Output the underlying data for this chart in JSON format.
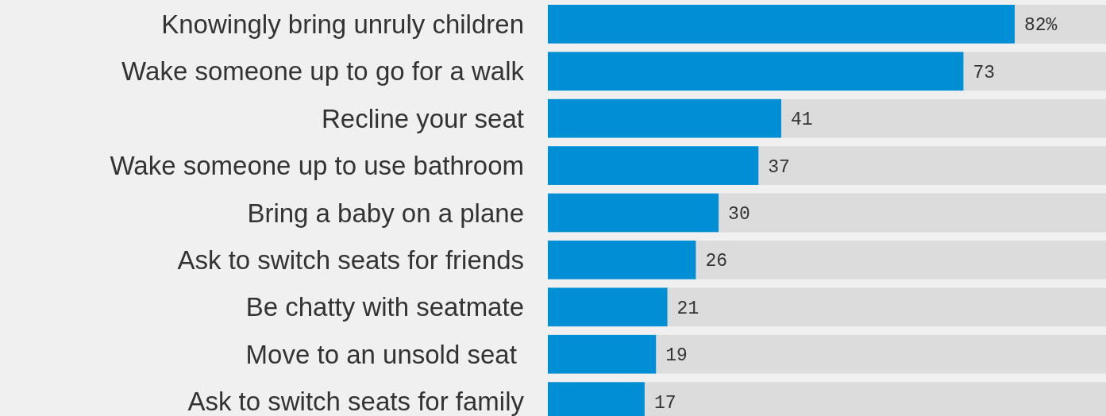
{
  "chart_data": {
    "type": "bar",
    "orientation": "horizontal",
    "categories": [
      "Knowingly bring unruly children",
      "Wake someone up to go for a walk",
      "Recline your seat",
      "Wake someone up to use bathroom",
      "Bring a baby on a plane",
      "Ask to switch seats for friends",
      "Be chatty with seatmate",
      "Move to an unsold seat ",
      "Ask to switch seats for family"
    ],
    "series": [
      {
        "color": "#008fd5",
        "values": [
          82,
          73,
          41,
          37,
          30,
          26,
          21,
          19,
          17
        ],
        "value_labels": [
          "82%",
          "73",
          "41",
          "37",
          "30",
          "26",
          "21",
          "19",
          "17"
        ]
      }
    ],
    "tick_labels": "y"
  }
}
